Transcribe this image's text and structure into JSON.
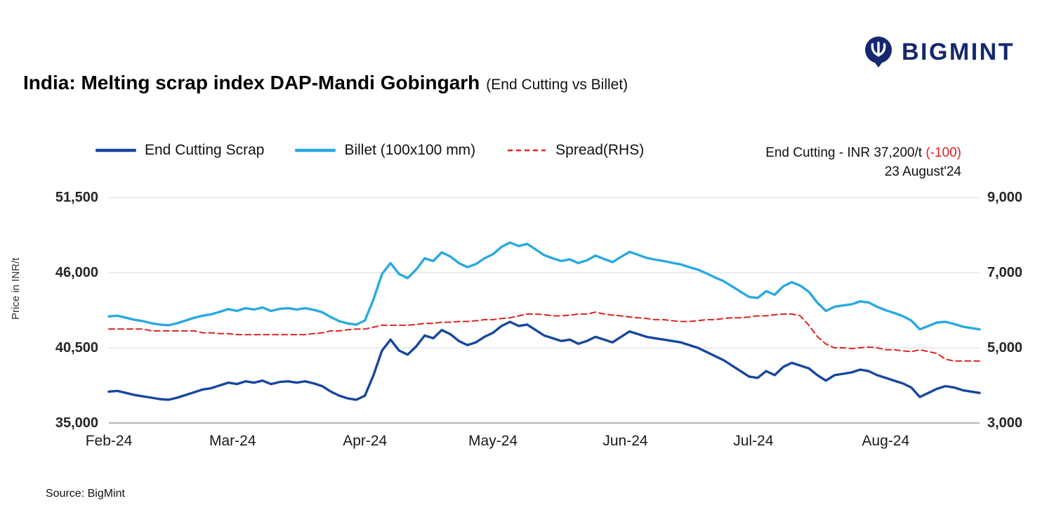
{
  "logo": {
    "text": "BIGMINT"
  },
  "title": {
    "main": "India: Melting scrap index DAP-Mandi Gobingarh",
    "sub": "(End Cutting vs Billet)"
  },
  "annotation": {
    "price_label": "End Cutting - INR 37,200/t ",
    "change": "(-100)",
    "date": "23 August'24"
  },
  "axis": {
    "left_title": "Price in INR/t"
  },
  "source": "Source: BigMint",
  "colors": {
    "end_cutting": "#17479E",
    "billet": "#29A9E1",
    "spread": "#E02020",
    "logo_navy": "#13286E",
    "gridline": "#D9D9D9",
    "axis_line": "#9B9B9B"
  },
  "chart_data": {
    "type": "line",
    "title": "India: Melting scrap index DAP-Mandi Gobingarh (End Cutting vs Billet)",
    "ylabel_left": "Price in INR/t",
    "ylim_left": [
      35000,
      51500
    ],
    "ylim_right": [
      3000,
      9000
    ],
    "xlim": [
      0,
      204
    ],
    "x_unit": "days from 1 Feb 2024 to 23 Aug 2024",
    "grid": "horizontal",
    "legend_position": "top",
    "yticks_left": [
      {
        "v": 35000,
        "label": "35,000"
      },
      {
        "v": 40500,
        "label": "40,500"
      },
      {
        "v": 46000,
        "label": "46,000"
      },
      {
        "v": 51500,
        "label": "51,500"
      }
    ],
    "yticks_right": [
      {
        "v": 3000,
        "label": "3,000"
      },
      {
        "v": 5000,
        "label": "5,000"
      },
      {
        "v": 7000,
        "label": "7,000"
      },
      {
        "v": 9000,
        "label": "9,000"
      }
    ],
    "xticks": [
      {
        "d": 0,
        "label": "Feb-24"
      },
      {
        "d": 29,
        "label": "Mar-24"
      },
      {
        "d": 60,
        "label": "Apr-24"
      },
      {
        "d": 90,
        "label": "May-24"
      },
      {
        "d": 121,
        "label": "Jun-24"
      },
      {
        "d": 151,
        "label": "Jul-24"
      },
      {
        "d": 182,
        "label": "Aug-24"
      }
    ],
    "x_days": [
      0,
      2,
      4,
      6,
      8,
      10,
      12,
      14,
      16,
      18,
      20,
      22,
      24,
      26,
      28,
      30,
      32,
      34,
      36,
      38,
      40,
      42,
      44,
      46,
      48,
      50,
      52,
      54,
      56,
      58,
      60,
      62,
      64,
      66,
      68,
      70,
      72,
      74,
      76,
      78,
      80,
      82,
      84,
      86,
      88,
      90,
      92,
      94,
      96,
      98,
      100,
      102,
      104,
      106,
      108,
      110,
      112,
      114,
      116,
      118,
      120,
      122,
      124,
      126,
      128,
      130,
      132,
      134,
      136,
      138,
      140,
      142,
      144,
      146,
      148,
      150,
      152,
      154,
      156,
      158,
      160,
      162,
      164,
      166,
      168,
      170,
      172,
      174,
      176,
      178,
      180,
      182,
      184,
      186,
      188,
      190,
      192,
      194,
      196,
      198,
      200,
      202,
      204
    ],
    "series": [
      {
        "name": "End Cutting Scrap",
        "axis": "left",
        "color": "#17479E",
        "line": "solid",
        "values": [
          37300,
          37350,
          37200,
          37050,
          36950,
          36850,
          36750,
          36700,
          36850,
          37050,
          37250,
          37450,
          37550,
          37750,
          37950,
          37850,
          38050,
          37950,
          38100,
          37850,
          38000,
          38050,
          37950,
          38050,
          37900,
          37700,
          37300,
          37000,
          36800,
          36700,
          37000,
          38500,
          40300,
          41100,
          40300,
          40000,
          40600,
          41400,
          41200,
          41800,
          41500,
          41000,
          40700,
          40900,
          41300,
          41600,
          42100,
          42400,
          42100,
          42200,
          41800,
          41400,
          41200,
          41000,
          41100,
          40800,
          41000,
          41300,
          41100,
          40900,
          41300,
          41700,
          41500,
          41300,
          41200,
          41100,
          41000,
          40900,
          40700,
          40500,
          40200,
          39900,
          39600,
          39200,
          38800,
          38400,
          38300,
          38800,
          38500,
          39100,
          39400,
          39200,
          39000,
          38500,
          38100,
          38500,
          38600,
          38700,
          38900,
          38800,
          38500,
          38300,
          38100,
          37900,
          37600,
          36900,
          37200,
          37500,
          37700,
          37600,
          37400,
          37300,
          37200
        ]
      },
      {
        "name": "Billet (100x100 mm)",
        "axis": "left",
        "color": "#29A9E1",
        "line": "solid",
        "values": [
          42800,
          42850,
          42700,
          42550,
          42450,
          42300,
          42200,
          42150,
          42300,
          42500,
          42700,
          42850,
          42950,
          43130,
          43330,
          43200,
          43400,
          43300,
          43450,
          43200,
          43350,
          43400,
          43300,
          43400,
          43280,
          43100,
          42750,
          42450,
          42280,
          42200,
          42500,
          44050,
          45900,
          46700,
          45900,
          45600,
          46220,
          47050,
          46850,
          47480,
          47180,
          46700,
          46400,
          46620,
          47050,
          47350,
          47880,
          48200,
          47950,
          48100,
          47700,
          47280,
          47050,
          46850,
          46970,
          46700,
          46900,
          47250,
          47000,
          46770,
          47150,
          47520,
          47300,
          47080,
          46950,
          46850,
          46720,
          46600,
          46400,
          46220,
          45950,
          45650,
          45380,
          45000,
          44600,
          44220,
          44150,
          44650,
          44380,
          45000,
          45300,
          45050,
          44600,
          43800,
          43200,
          43500,
          43600,
          43680,
          43900,
          43820,
          43500,
          43250,
          43050,
          42820,
          42500,
          41850,
          42100,
          42350,
          42400,
          42250,
          42050,
          41950,
          41850
        ]
      },
      {
        "name": "Spread(RHS)",
        "axis": "right",
        "color": "#E02020",
        "line": "dashed",
        "values": [
          5500,
          5500,
          5500,
          5500,
          5500,
          5450,
          5450,
          5450,
          5450,
          5450,
          5450,
          5400,
          5400,
          5380,
          5380,
          5350,
          5350,
          5350,
          5350,
          5350,
          5350,
          5350,
          5350,
          5350,
          5380,
          5400,
          5450,
          5450,
          5480,
          5500,
          5500,
          5550,
          5600,
          5600,
          5600,
          5600,
          5620,
          5650,
          5650,
          5680,
          5680,
          5700,
          5700,
          5720,
          5750,
          5750,
          5780,
          5800,
          5850,
          5900,
          5900,
          5880,
          5850,
          5850,
          5870,
          5900,
          5900,
          5950,
          5900,
          5870,
          5850,
          5820,
          5800,
          5780,
          5750,
          5750,
          5720,
          5700,
          5700,
          5720,
          5750,
          5750,
          5780,
          5800,
          5800,
          5820,
          5850,
          5850,
          5880,
          5900,
          5900,
          5850,
          5600,
          5300,
          5100,
          5000,
          5000,
          4980,
          5000,
          5020,
          5000,
          4950,
          4950,
          4920,
          4900,
          4950,
          4900,
          4850,
          4700,
          4650,
          4650,
          4650,
          4650
        ]
      }
    ]
  }
}
